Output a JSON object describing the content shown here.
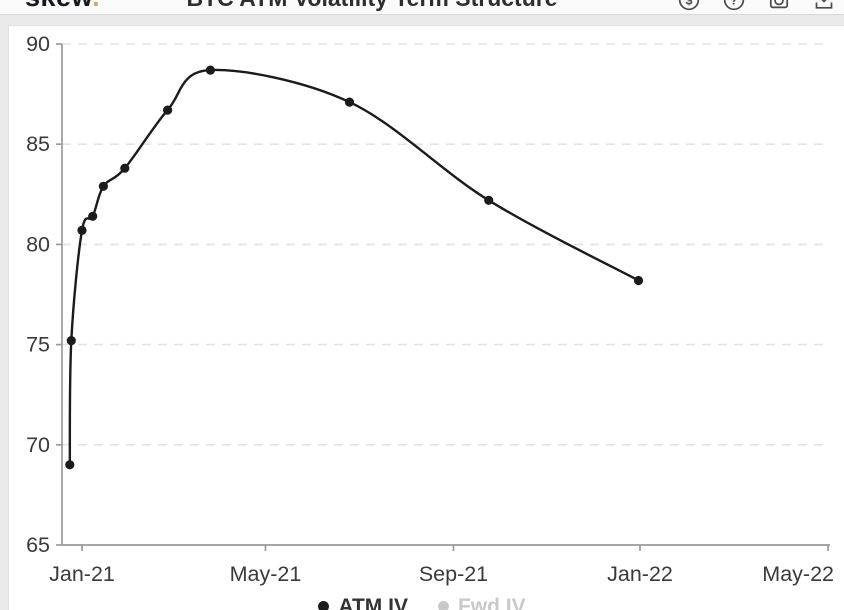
{
  "page": {
    "background": "#eaeaea"
  },
  "header": {
    "logo": {
      "text": "skew",
      "dot": ".",
      "dot_color": "#c9ab77"
    },
    "title": "BTC ATM Volatility Term Structure",
    "icons": [
      {
        "name": "currency-toggle-icon",
        "kind": "glyph-circle",
        "glyph": "$"
      },
      {
        "name": "help-icon",
        "kind": "glyph-circle",
        "glyph": "?"
      },
      {
        "name": "camera-icon",
        "kind": "camera"
      },
      {
        "name": "download-icon",
        "kind": "download"
      }
    ]
  },
  "chart_data": {
    "type": "line",
    "title": "BTC ATM Volatility Term Structure",
    "x_axis": {
      "ticks": [
        {
          "label": "Jan-21",
          "date": "2021-01-01"
        },
        {
          "label": "May-21",
          "date": "2021-05-01"
        },
        {
          "label": "Sep-21",
          "date": "2021-09-01"
        },
        {
          "label": "Jan-22",
          "date": "2022-01-01"
        },
        {
          "label": "May-22",
          "date": "2022-05-01",
          "edge": true
        }
      ]
    },
    "y_axis": {
      "ticks": [
        90,
        85,
        80,
        75,
        70,
        65
      ],
      "min": 65,
      "max": 90
    },
    "grid": {
      "horizontal": true,
      "style": "dashed"
    },
    "legend_position": "bottom-center",
    "series": [
      {
        "name": "ATM IV",
        "color": "#1b1b1b",
        "active": true,
        "points": [
          {
            "date": "2020-12-24",
            "value": 69.0
          },
          {
            "date": "2020-12-25",
            "value": 75.2
          },
          {
            "date": "2021-01-01",
            "value": 80.7
          },
          {
            "date": "2021-01-08",
            "value": 81.4
          },
          {
            "date": "2021-01-15",
            "value": 82.9
          },
          {
            "date": "2021-01-29",
            "value": 83.8
          },
          {
            "date": "2021-02-26",
            "value": 86.7
          },
          {
            "date": "2021-03-26",
            "value": 88.7
          },
          {
            "date": "2021-06-25",
            "value": 87.1
          },
          {
            "date": "2021-09-24",
            "value": 82.2
          },
          {
            "date": "2021-12-31",
            "value": 78.2
          }
        ]
      },
      {
        "name": "Fwd IV",
        "color": "#c9c9c9",
        "active": false,
        "points": []
      }
    ]
  },
  "colors": {
    "axis": "#9a9a9a",
    "grid": "#e3e3e3",
    "tick_text": "#3a3a3a",
    "series": "#1b1b1b",
    "legend_active_text": "#333333",
    "legend_inactive": "#c9c9c9",
    "icon_stroke": "#4a4a4a",
    "card_bg": "#ffffff",
    "header_bg": "#fbfbfb"
  }
}
